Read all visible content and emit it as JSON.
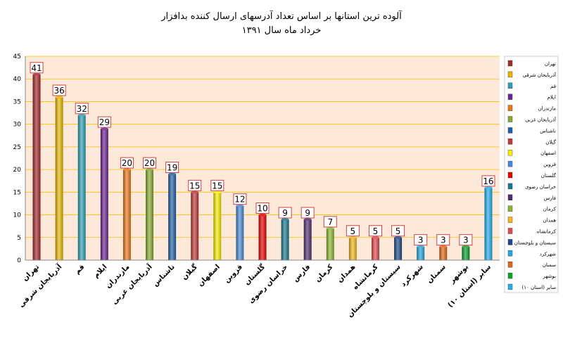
{
  "chart_data": {
    "type": "bar",
    "title": "آلوده ترین استانها بر اساس تعداد آدرسهای ارسال کننده بدافزار",
    "subtitle": "خرداد ماه سال ۱۳۹۱",
    "categories": [
      "تهران",
      "آذربایجان شرقی",
      "قم",
      "ایلام",
      "مازندران",
      "آذربایجان غربی",
      "ناشناس",
      "گیلان",
      "اصفهان",
      "قزوین",
      "گلستان",
      "خراسان رضوی",
      "فارس",
      "کرمان",
      "همدان",
      "کرمانشاه",
      "سیستان و بلوچستان",
      "شهرکرد",
      "سمنان",
      "بوشهر",
      "(استان ۱۰) سایر"
    ],
    "values": [
      41,
      36,
      32,
      29,
      20,
      20,
      19,
      15,
      15,
      12,
      10,
      9,
      9,
      7,
      5,
      5,
      5,
      3,
      3,
      3,
      16
    ],
    "colors": [
      "#a52a2a",
      "#e8b800",
      "#2aa0b8",
      "#6a2590",
      "#e87818",
      "#88aa30",
      "#2060a8",
      "#c03838",
      "#f8f000",
      "#4888d8",
      "#e80000",
      "#1a7890",
      "#503070",
      "#88b830",
      "#f0b820",
      "#e04850",
      "#1a4888",
      "#20a8e0",
      "#e06818",
      "#10a030",
      "#20b0f0"
    ],
    "ylim": [
      0,
      45
    ],
    "yticks": [
      0,
      5,
      10,
      15,
      20,
      25,
      30,
      35,
      40,
      45
    ],
    "grid": true,
    "legend": "right"
  }
}
